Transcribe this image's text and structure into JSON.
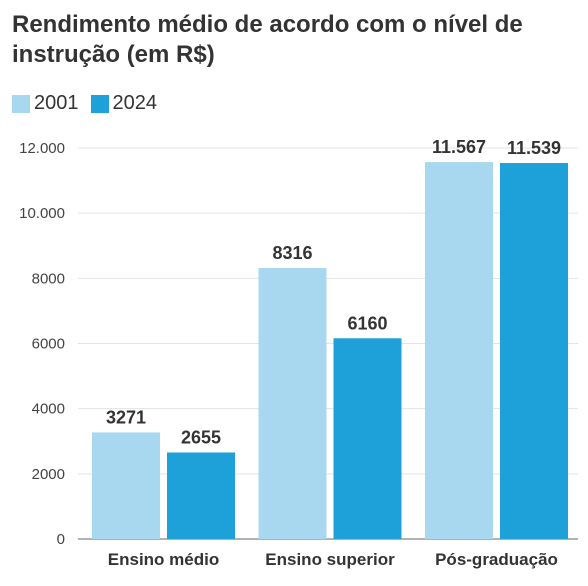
{
  "chart_data": {
    "type": "bar",
    "title": "Rendimento médio de acordo com o nível de instrução (em R$)",
    "categories": [
      "Ensino médio",
      "Ensino superior",
      "Pós-graduação"
    ],
    "series": [
      {
        "name": "2001",
        "color": "#a8d8ef",
        "values": [
          3271,
          8316,
          11567
        ],
        "labels": [
          "3271",
          "8316",
          "11.567"
        ]
      },
      {
        "name": "2024",
        "color": "#1ea0d9",
        "values": [
          2655,
          6160,
          11539
        ],
        "labels": [
          "2655",
          "6160",
          "11.539"
        ]
      }
    ],
    "ylim": [
      0,
      12000
    ],
    "yticks": [
      0,
      2000,
      4000,
      6000,
      8000,
      10000,
      12000
    ],
    "ytick_labels": [
      "0",
      "2000",
      "4000",
      "6000",
      "8000",
      "10.000",
      "12.000"
    ],
    "grid": true,
    "legend_position": "top-left"
  }
}
